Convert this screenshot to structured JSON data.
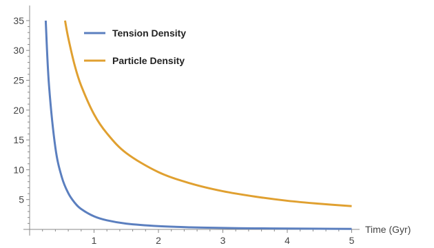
{
  "chart_data": {
    "type": "line",
    "title": "",
    "xlabel": "Time (Gyr)",
    "ylabel": "",
    "xlim": [
      0,
      5
    ],
    "ylim": [
      0,
      36
    ],
    "x_ticks": [
      1,
      2,
      3,
      4,
      5
    ],
    "y_ticks": [
      5,
      10,
      15,
      20,
      25,
      30,
      35
    ],
    "grid": false,
    "legend_position": "top-left",
    "series": [
      {
        "name": "Tension Density",
        "color": "#5b7fbf",
        "x": [
          0.25,
          0.3,
          0.4,
          0.5,
          0.6,
          0.7,
          0.8,
          1.0,
          1.2,
          1.5,
          2.0,
          2.5,
          3.0,
          3.5,
          4.0,
          4.5,
          5.0
        ],
        "y": [
          35.0,
          24.3,
          13.7,
          8.75,
          6.08,
          4.47,
          3.42,
          2.19,
          1.52,
          0.97,
          0.55,
          0.35,
          0.24,
          0.18,
          0.14,
          0.11,
          0.09
        ]
      },
      {
        "name": "Particle Density",
        "color": "#e0a030",
        "x": [
          0.55,
          0.6,
          0.7,
          0.8,
          1.0,
          1.2,
          1.5,
          2.0,
          2.5,
          3.0,
          3.5,
          4.0,
          4.5,
          5.0
        ],
        "y": [
          35.0,
          32.1,
          27.5,
          24.1,
          19.3,
          16.1,
          12.8,
          9.6,
          7.7,
          6.4,
          5.5,
          4.8,
          4.3,
          3.9
        ]
      }
    ]
  }
}
